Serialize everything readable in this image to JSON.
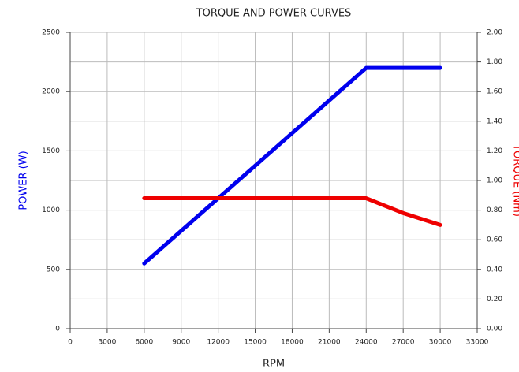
{
  "chart_data": {
    "type": "line",
    "title": "TORQUE AND POWER CURVES",
    "x_label": "RPM",
    "y_label": "POWER (W)",
    "y2_label": "TORQUE (Nm)",
    "xlim": [
      0,
      33000
    ],
    "xticks": [
      0,
      3000,
      6000,
      9000,
      12000,
      15000,
      18000,
      21000,
      24000,
      27000,
      30000,
      33000
    ],
    "ylim": [
      0,
      2500
    ],
    "yticks": [
      0,
      500,
      1000,
      1500,
      2000,
      2500
    ],
    "y2lim": [
      0,
      2
    ],
    "y2ticks": [
      {
        "value": 0,
        "label": "0.00"
      },
      {
        "value": 0.2,
        "label": "0.20"
      },
      {
        "value": 0.4,
        "label": "0.40"
      },
      {
        "value": 0.6,
        "label": "0.60"
      },
      {
        "value": 0.8,
        "label": "0.80"
      },
      {
        "value": 1,
        "label": "1.00"
      },
      {
        "value": 1.2,
        "label": "1.20"
      },
      {
        "value": 1.4,
        "label": "1.40"
      },
      {
        "value": 1.6,
        "label": "1.60"
      },
      {
        "value": 1.8,
        "label": "1.80"
      },
      {
        "value": 2,
        "label": "2.00"
      }
    ],
    "grid": true,
    "series": [
      {
        "name": "POWER (W)",
        "color": "#0000ee",
        "x": [
          6000,
          24000,
          30000
        ],
        "values": [
          550,
          2200,
          2200
        ]
      },
      {
        "name": "TORQUE (Nm)",
        "color": "#ee0000",
        "axis": "y2",
        "x": [
          6000,
          24000,
          25500,
          27000,
          28500,
          30000
        ],
        "values": [
          0.88,
          0.88,
          0.83,
          0.78,
          0.74,
          0.7
        ]
      }
    ]
  }
}
